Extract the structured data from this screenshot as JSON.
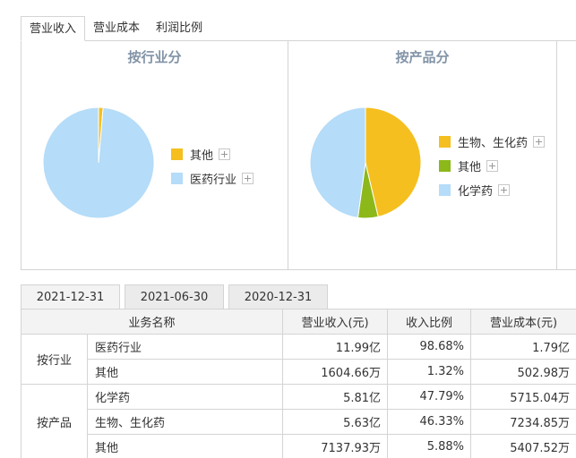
{
  "top_tabs": [
    "营业收入",
    "营业成本",
    "利润比例"
  ],
  "industry_pie": {
    "title": "按行业分",
    "items": [
      {
        "label": "其他",
        "color": "#f5bf1f"
      },
      {
        "label": "医药行业",
        "color": "#b5dcf8"
      }
    ]
  },
  "product_pie": {
    "title": "按产品分",
    "items": [
      {
        "label": "生物、生化药",
        "color": "#f5bf1f"
      },
      {
        "label": "其他",
        "color": "#8cb81a"
      },
      {
        "label": "化学药",
        "color": "#b5dcf8"
      }
    ]
  },
  "chart_data": [
    {
      "type": "pie",
      "title": "按行业分",
      "categories": [
        "其他",
        "医药行业"
      ],
      "values": [
        1.32,
        98.68
      ],
      "colors": [
        "#f5bf1f",
        "#b5dcf8"
      ]
    },
    {
      "type": "pie",
      "title": "按产品分",
      "categories": [
        "生物、生化药",
        "其他",
        "化学药"
      ],
      "values": [
        46.33,
        5.88,
        47.79
      ],
      "colors": [
        "#f5bf1f",
        "#8cb81a",
        "#b5dcf8"
      ]
    }
  ],
  "date_tabs": [
    "2021-12-31",
    "2021-06-30",
    "2020-12-31"
  ],
  "table": {
    "headers": [
      "业务名称",
      "营业收入(元)",
      "收入比例",
      "营业成本(元)"
    ],
    "groups": [
      {
        "label": "按行业",
        "rows": [
          {
            "name": "医药行业",
            "revenue": "11.99亿",
            "ratio": "98.68%",
            "cost": "1.79亿"
          },
          {
            "name": "其他",
            "revenue": "1604.66万",
            "ratio": "1.32%",
            "cost": "502.98万"
          }
        ]
      },
      {
        "label": "按产品",
        "rows": [
          {
            "name": "化学药",
            "revenue": "5.81亿",
            "ratio": "47.79%",
            "cost": "5715.04万"
          },
          {
            "name": "生物、生化药",
            "revenue": "5.63亿",
            "ratio": "46.33%",
            "cost": "7234.85万"
          },
          {
            "name": "其他",
            "revenue": "7137.93万",
            "ratio": "5.88%",
            "cost": "5407.52万"
          }
        ]
      }
    ]
  }
}
